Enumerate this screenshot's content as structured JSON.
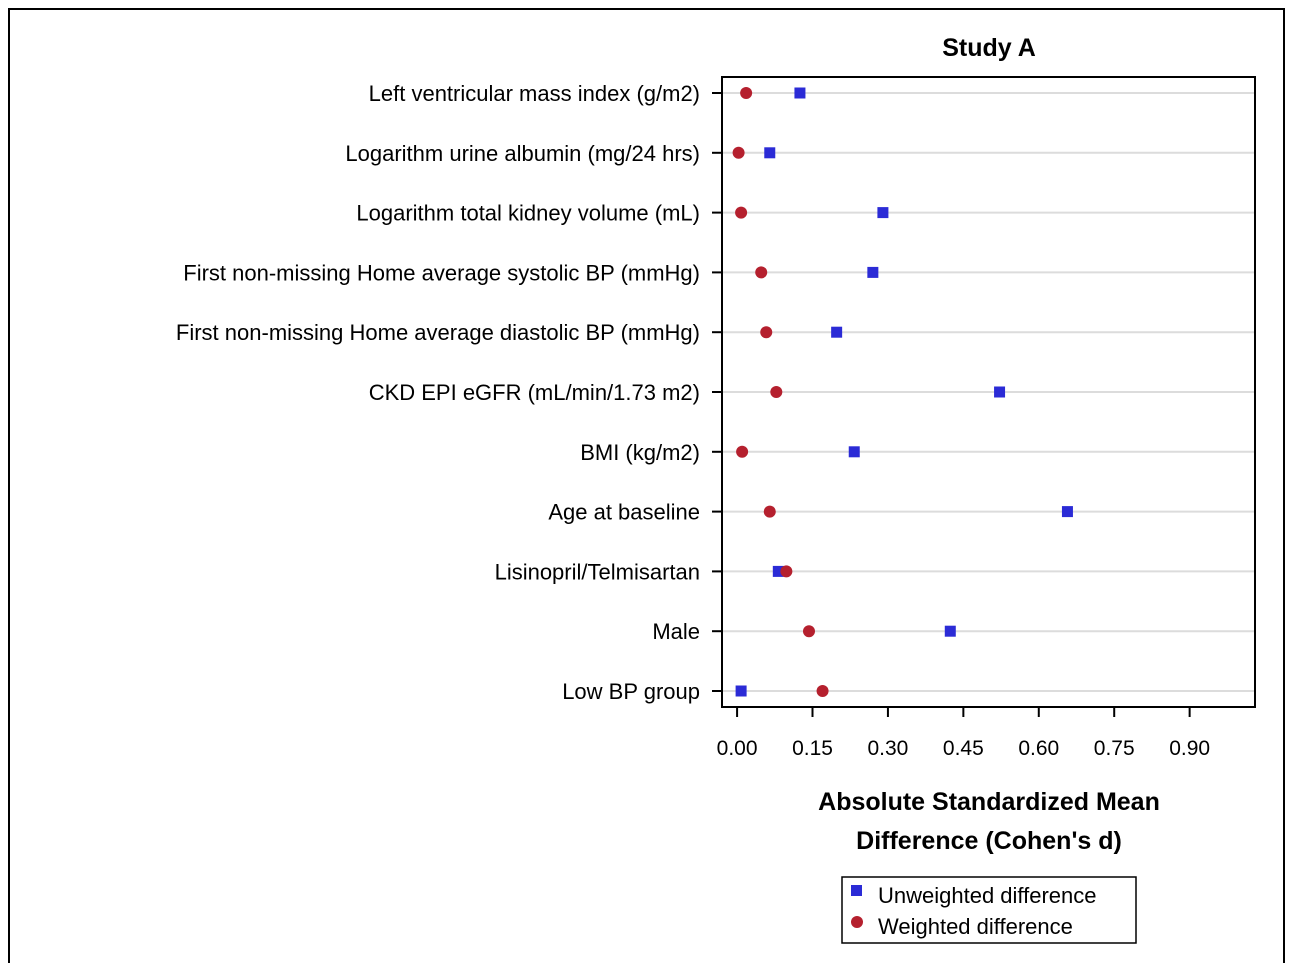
{
  "chart_data": {
    "type": "scatter",
    "title": "Study A",
    "xlabel_lines": [
      "Absolute Standardized Mean",
      "Difference (Cohen's d)"
    ],
    "xlim": [
      -0.03,
      1.03
    ],
    "xticks": [
      0.0,
      0.15,
      0.3,
      0.45,
      0.6,
      0.75,
      0.9
    ],
    "xtick_labels": [
      "0.00",
      "0.15",
      "0.30",
      "0.45",
      "0.60",
      "0.75",
      "0.90"
    ],
    "categories": [
      "Left ventricular mass index (g/m2)",
      "Logarithm urine albumin (mg/24 hrs)",
      "Logarithm total kidney volume (mL)",
      "First non-missing Home average systolic BP (mmHg)",
      "First non-missing Home average diastolic BP (mmHg)",
      "CKD EPI eGFR (mL/min/1.73 m2)",
      "BMI (kg/m2)",
      "Age at baseline",
      "Lisinopril/Telmisartan",
      "Male",
      "Low BP group"
    ],
    "series": [
      {
        "name": "Unweighted difference",
        "marker": "square",
        "color": "#2b2bd6",
        "values": [
          0.125,
          0.065,
          0.29,
          0.27,
          0.198,
          0.522,
          0.233,
          0.657,
          0.082,
          0.424,
          0.008
        ]
      },
      {
        "name": "Weighted difference",
        "marker": "circle",
        "color": "#b5202e",
        "values": [
          0.018,
          0.003,
          0.008,
          0.048,
          0.058,
          0.078,
          0.01,
          0.065,
          0.098,
          0.143,
          0.17
        ]
      }
    ],
    "grid": "horizontal",
    "legend_position": "bottom"
  }
}
